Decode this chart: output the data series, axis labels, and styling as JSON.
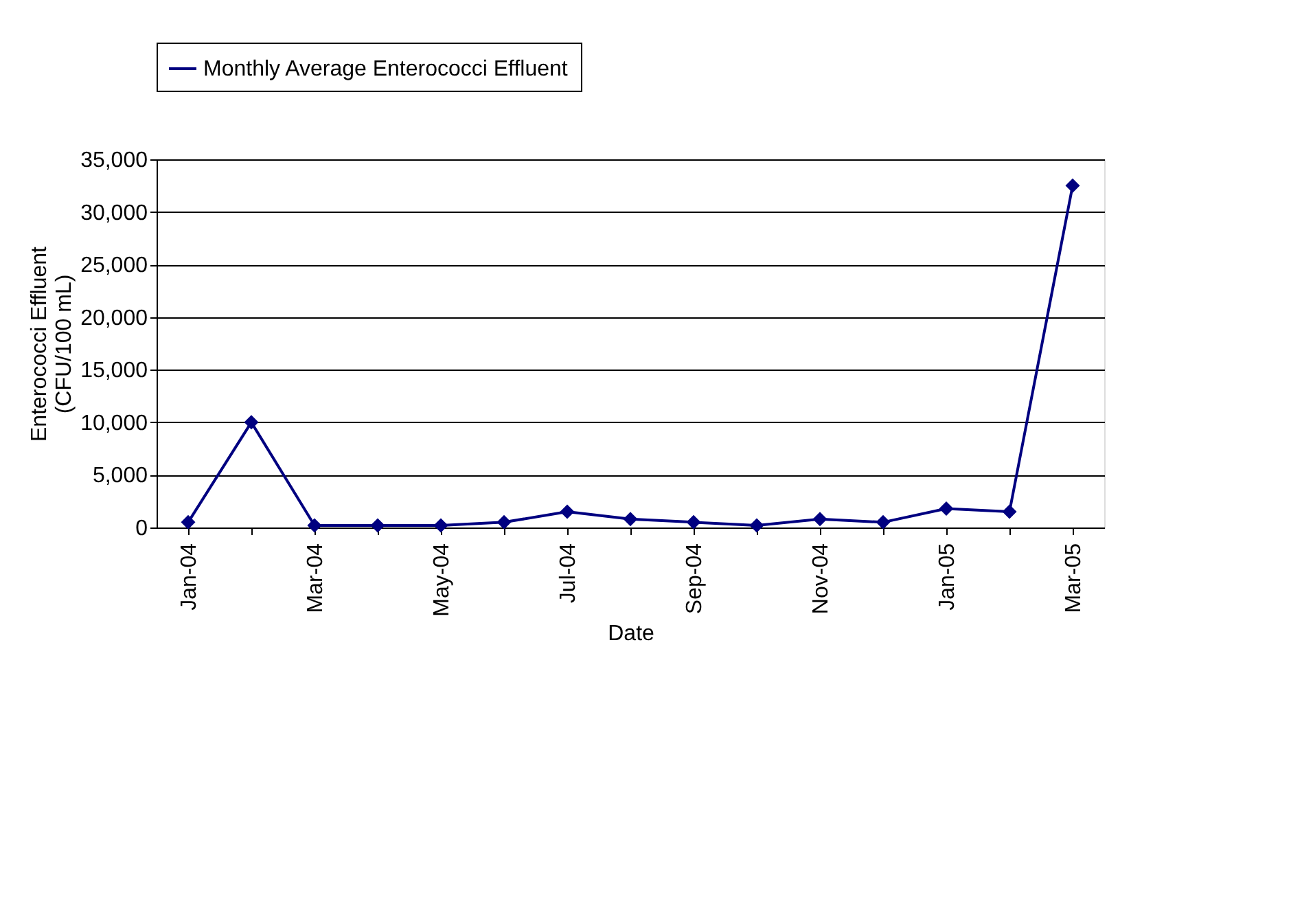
{
  "chart_data": {
    "type": "line",
    "xlabel": "Date",
    "ylabel": "Enterococci Effluent (CFU/100 mL)",
    "categories": [
      "Jan-04",
      null,
      "Mar-04",
      null,
      "May-04",
      null,
      "Jul-04",
      null,
      "Sep-04",
      null,
      "Nov-04",
      null,
      "Jan-05",
      null,
      "Mar-05"
    ],
    "series": [
      {
        "name": "Monthly Average Enterococci Effluent",
        "color": "#000080",
        "values": [
          500,
          10000,
          200,
          200,
          200,
          500,
          1500,
          800,
          500,
          200,
          800,
          500,
          1800,
          1500,
          32500
        ]
      }
    ],
    "ylim": [
      0,
      35000
    ],
    "yticks": [
      {
        "value": 0,
        "label": "0"
      },
      {
        "value": 5000,
        "label": "5,000"
      },
      {
        "value": 10000,
        "label": "10,000"
      },
      {
        "value": 15000,
        "label": "15,000"
      },
      {
        "value": 20000,
        "label": "20,000"
      },
      {
        "value": 25000,
        "label": "25,000"
      },
      {
        "value": 30000,
        "label": "30,000"
      },
      {
        "value": 35000,
        "label": "35,000"
      }
    ],
    "grid": "y",
    "legend": "top",
    "marker": "diamond",
    "line_style": "solid"
  }
}
